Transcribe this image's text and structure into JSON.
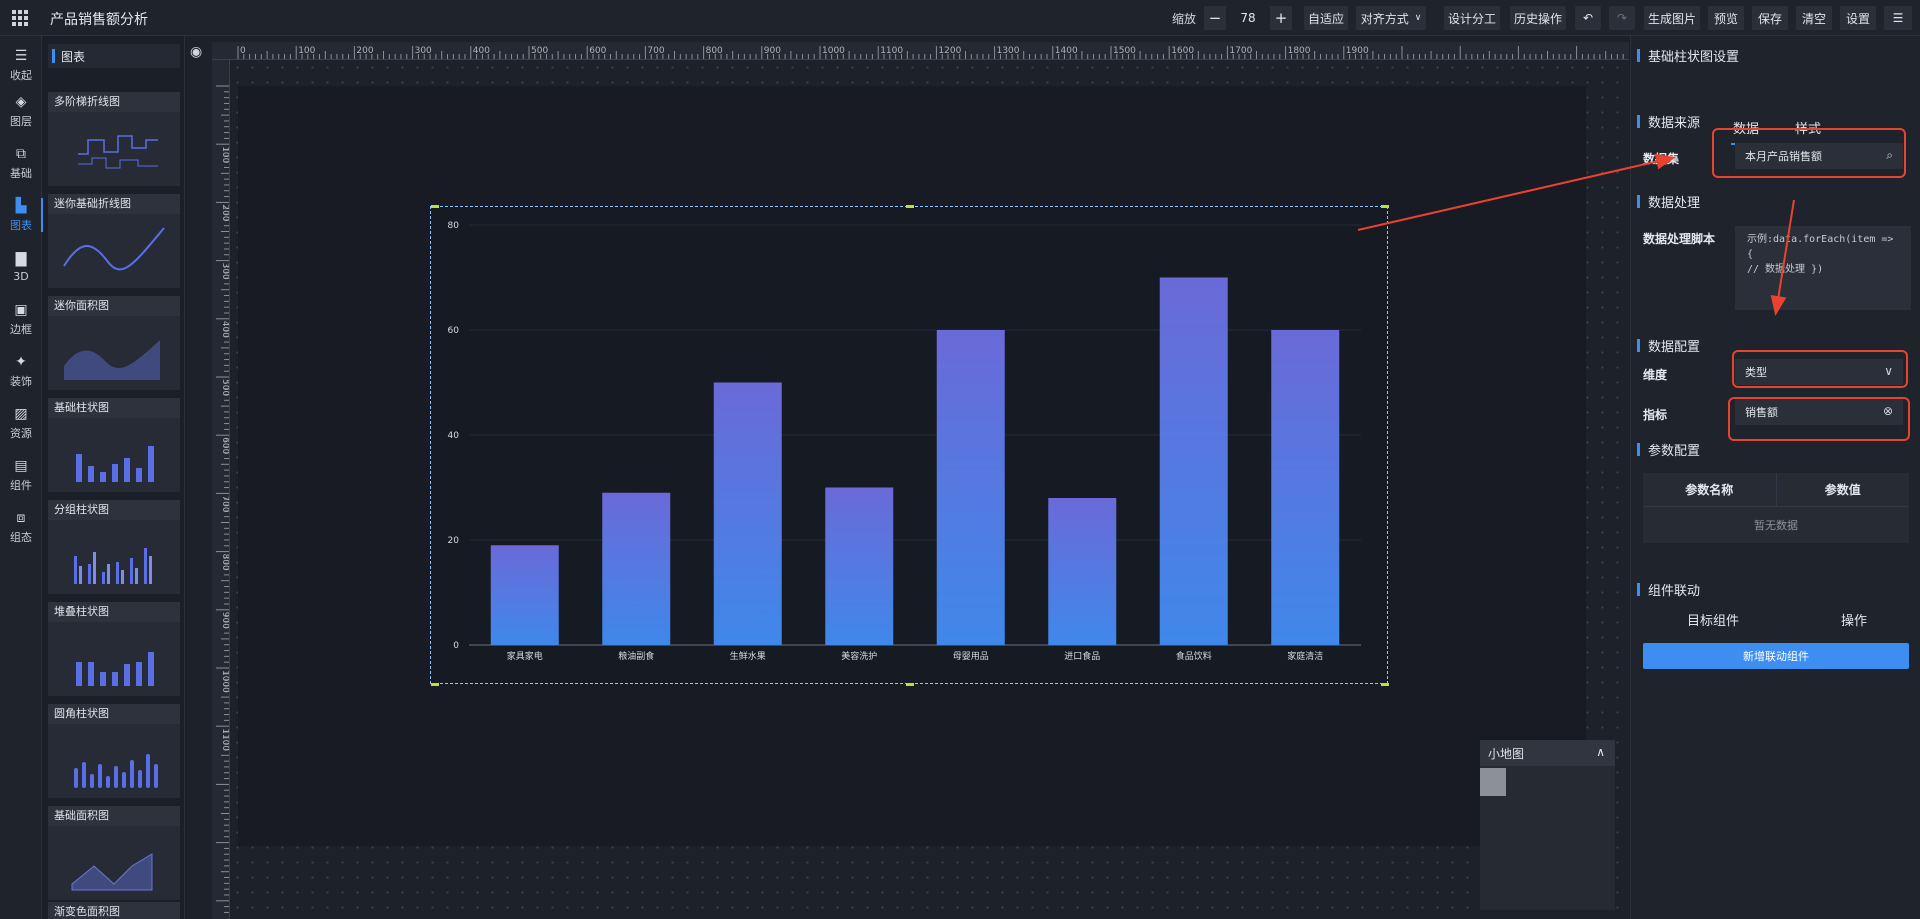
{
  "app": {
    "title": "产品销售额分析"
  },
  "toolbar": {
    "zoom_label": "缩放",
    "zoom_value": "78",
    "fit": "自适应",
    "align": "对齐方式",
    "design_split": "设计分工",
    "history": "历史操作",
    "generate_image": "生成图片",
    "preview": "预览",
    "save": "保存",
    "clear": "清空",
    "settings": "设置"
  },
  "rail": [
    {
      "label": "收起",
      "icon": "collapse-icon"
    },
    {
      "label": "图层",
      "icon": "layers-icon"
    },
    {
      "label": "基础",
      "icon": "puzzle-icon"
    },
    {
      "label": "图表",
      "icon": "bar-chart-icon"
    },
    {
      "label": "3D",
      "icon": "cube-icon"
    },
    {
      "label": "边框",
      "icon": "border-icon"
    },
    {
      "label": "装饰",
      "icon": "sparkle-icon"
    },
    {
      "label": "资源",
      "icon": "image-icon"
    },
    {
      "label": "组件",
      "icon": "component-icon"
    },
    {
      "label": "组态",
      "icon": "config-icon"
    }
  ],
  "panel": {
    "title": "图表",
    "cards": [
      "多阶梯折线图",
      "迷你基础折线图",
      "迷你面积图",
      "基础柱状图",
      "分组柱状图",
      "堆叠柱状图",
      "圆角柱状图",
      "基础面积图",
      "渐变色面积图"
    ]
  },
  "ruler": {
    "top": [
      "0",
      "100",
      "200",
      "300",
      "400",
      "500",
      "600",
      "700",
      "800",
      "900",
      "1000",
      "1100",
      "1200",
      "1300",
      "1400",
      "1500",
      "1600",
      "1700",
      "1800",
      "1900"
    ],
    "left": [
      "100",
      "200",
      "300",
      "400",
      "500",
      "600",
      "700",
      "800",
      "900",
      "1000",
      "1100"
    ]
  },
  "chart_data": {
    "type": "bar",
    "categories": [
      "家具家电",
      "粮油副食",
      "生鲜水果",
      "美容洗护",
      "母婴用品",
      "进口食品",
      "食品饮料",
      "家庭清洁"
    ],
    "values": [
      19,
      29,
      50,
      30,
      60,
      28,
      70,
      60
    ],
    "ylim": [
      0,
      80
    ],
    "yticks": [
      "0",
      "20",
      "40",
      "60",
      "80"
    ],
    "grid": true,
    "colors": {
      "top": "#6a6ad8",
      "bottom": "#3f88ea"
    }
  },
  "minimap": {
    "title": "小地图"
  },
  "config": {
    "title": "基础柱状图设置",
    "tabs": [
      "数据",
      "样式"
    ],
    "source_section": "数据来源",
    "dataset_label": "数据集",
    "dataset_value": "本月产品销售额",
    "process_section": "数据处理",
    "script_label": "数据处理脚本",
    "script_line1": "示例:data.forEach(item => {",
    "script_line2": "// 数据处理 })",
    "data_config_section": "数据配置",
    "dimension_label": "维度",
    "dimension_value": "类型",
    "metric_label": "指标",
    "metric_value": "销售额",
    "param_section": "参数配置",
    "param_col_name": "参数名称",
    "param_col_value": "参数值",
    "param_empty": "暂无数据",
    "link_section": "组件联动",
    "link_col_target": "目标组件",
    "link_col_action": "操作",
    "add_link_button": "新增联动组件"
  }
}
